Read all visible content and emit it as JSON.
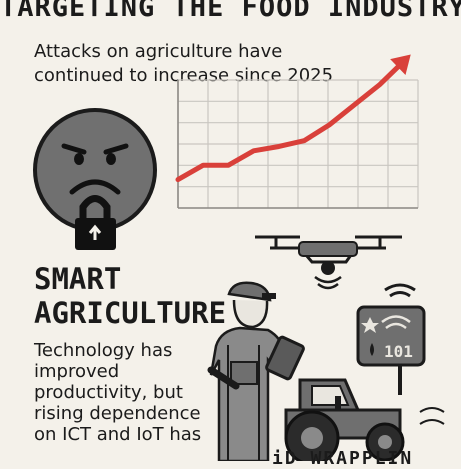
{
  "header": {
    "title": "TARGETING THE FOOD INDUSTRY",
    "subtitle": "Attacks on agriculture have continued to increase since 2025"
  },
  "section": {
    "heading_line1": "SMART",
    "heading_line2": "AGRICULTURE",
    "body": "Technology has improved productivity, but rising dependence on ICT and IoT has"
  },
  "bottom_text": "iD WRAPPLIN",
  "colors": {
    "background": "#f4f1ea",
    "trend_line": "#d9403a",
    "ink": "#1b1b1b",
    "face": "#6f6f6f"
  },
  "icons": [
    "angry-face-icon",
    "padlock-icon",
    "drone-icon",
    "farmer-tablet-icon",
    "iot-sensor-icon",
    "tractor-icon",
    "trend-arrow-icon"
  ],
  "chart_data": {
    "type": "line",
    "x": [
      0,
      1,
      2,
      3,
      4,
      5,
      6,
      7,
      8,
      9
    ],
    "values": [
      1,
      2,
      2,
      3,
      3.3,
      3.7,
      4.8,
      6.2,
      7.6,
      9.3
    ],
    "grid": true,
    "legend": "none"
  }
}
